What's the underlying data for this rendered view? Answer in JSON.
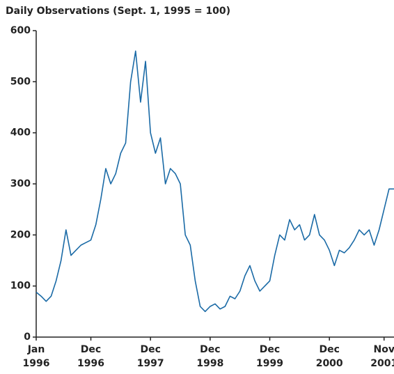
{
  "chart_data": {
    "type": "line",
    "title": "Daily Observations (Sept. 1, 1995 = 100)",
    "color": "#1a6aa6",
    "x": [
      "1996-01",
      "1996-02",
      "1996-03",
      "1996-04",
      "1996-05",
      "1996-06",
      "1996-07",
      "1996-08",
      "1996-09",
      "1996-10",
      "1996-11",
      "1996-12",
      "1997-01",
      "1997-02",
      "1997-03",
      "1997-04",
      "1997-05",
      "1997-06",
      "1997-07",
      "1997-08",
      "1997-09",
      "1997-10",
      "1997-11",
      "1997-12",
      "1998-01",
      "1998-02",
      "1998-03",
      "1998-04",
      "1998-05",
      "1998-06",
      "1998-07",
      "1998-08",
      "1998-09",
      "1998-10",
      "1998-11",
      "1998-12",
      "1999-01",
      "1999-02",
      "1999-03",
      "1999-04",
      "1999-05",
      "1999-06",
      "1999-07",
      "1999-08",
      "1999-09",
      "1999-10",
      "1999-11",
      "1999-12",
      "2000-01",
      "2000-02",
      "2000-03",
      "2000-04",
      "2000-05",
      "2000-06",
      "2000-07",
      "2000-08",
      "2000-09",
      "2000-10",
      "2000-11",
      "2000-12",
      "2001-01",
      "2001-02",
      "2001-03",
      "2001-04",
      "2001-05",
      "2001-06",
      "2001-07",
      "2001-08",
      "2001-09",
      "2001-10",
      "2001-11",
      "2001-12",
      "2002-01"
    ],
    "values": [
      88,
      80,
      70,
      80,
      110,
      150,
      210,
      160,
      170,
      180,
      185,
      190,
      220,
      270,
      330,
      300,
      320,
      360,
      380,
      500,
      560,
      460,
      540,
      400,
      360,
      390,
      300,
      330,
      320,
      300,
      200,
      180,
      110,
      60,
      50,
      60,
      65,
      55,
      60,
      80,
      75,
      90,
      120,
      140,
      110,
      90,
      100,
      110,
      160,
      200,
      190,
      230,
      210,
      220,
      190,
      200,
      240,
      200,
      190,
      170,
      140,
      170,
      165,
      175,
      190,
      210,
      200,
      210,
      180,
      210,
      250,
      290,
      290
    ],
    "xlim": [
      "1996-01",
      "2002-01"
    ],
    "xticks": [
      {
        "value": "1996-01",
        "label": "Jan\n1996"
      },
      {
        "value": "1996-12",
        "label": "Dec\n1996"
      },
      {
        "value": "1997-12",
        "label": "Dec\n1997"
      },
      {
        "value": "1998-12",
        "label": "Dec\n1998"
      },
      {
        "value": "1999-12",
        "label": "Dec\n1999"
      },
      {
        "value": "2000-12",
        "label": "Dec\n2000"
      },
      {
        "value": "2001-11",
        "label": "Nov\n2001"
      }
    ],
    "ylim": [
      0,
      600
    ],
    "yticks": [
      0,
      100,
      200,
      300,
      400,
      500,
      600
    ],
    "grid": false
  }
}
